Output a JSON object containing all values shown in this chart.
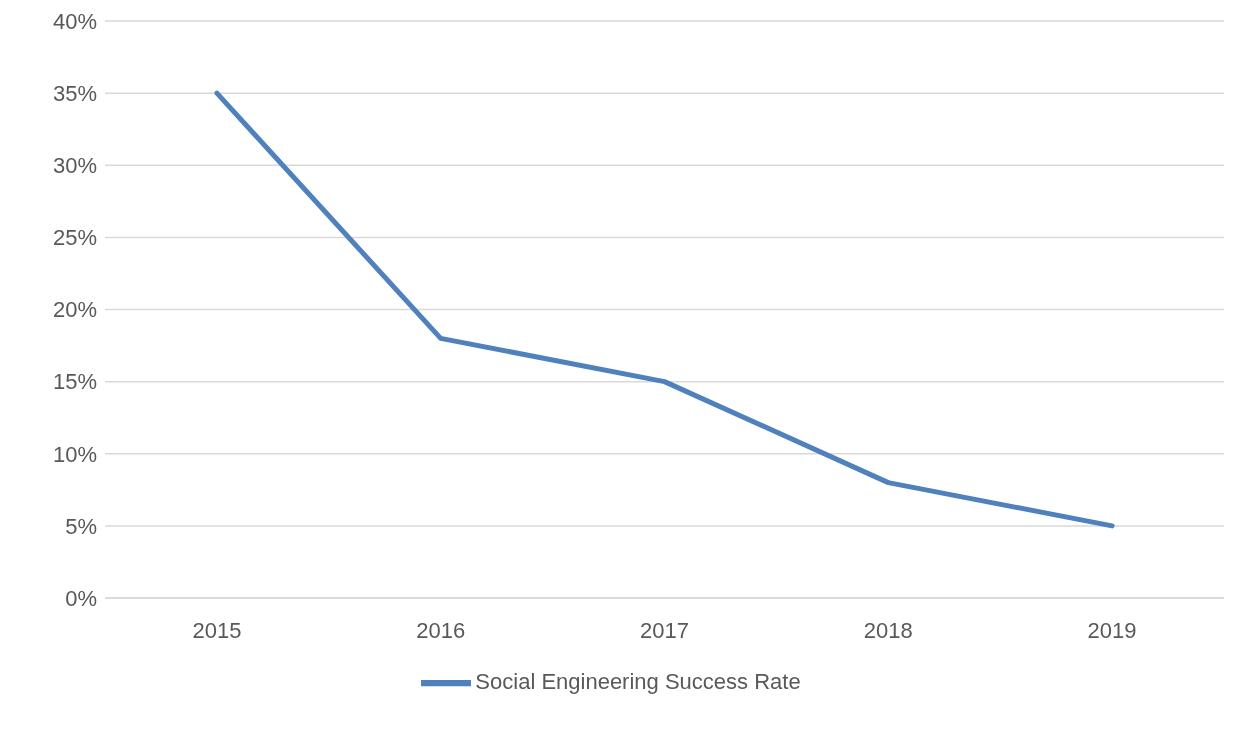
{
  "chart_data": {
    "type": "line",
    "categories": [
      "2015",
      "2016",
      "2017",
      "2018",
      "2019"
    ],
    "series": [
      {
        "name": "Social Engineering Success Rate",
        "color": "#4f81bd",
        "values": [
          35,
          18,
          15,
          8,
          5
        ]
      }
    ],
    "ylim": [
      0,
      40
    ],
    "yticks": [
      {
        "value": 0,
        "label": "0%"
      },
      {
        "value": 5,
        "label": "5%"
      },
      {
        "value": 10,
        "label": "10%"
      },
      {
        "value": 15,
        "label": "15%"
      },
      {
        "value": 20,
        "label": "20%"
      },
      {
        "value": 25,
        "label": "25%"
      },
      {
        "value": 30,
        "label": "30%"
      },
      {
        "value": 35,
        "label": "35%"
      },
      {
        "value": 40,
        "label": "40%"
      }
    ],
    "grid": "y",
    "legend": "bottom",
    "marker": "none",
    "line_style": "solid"
  }
}
